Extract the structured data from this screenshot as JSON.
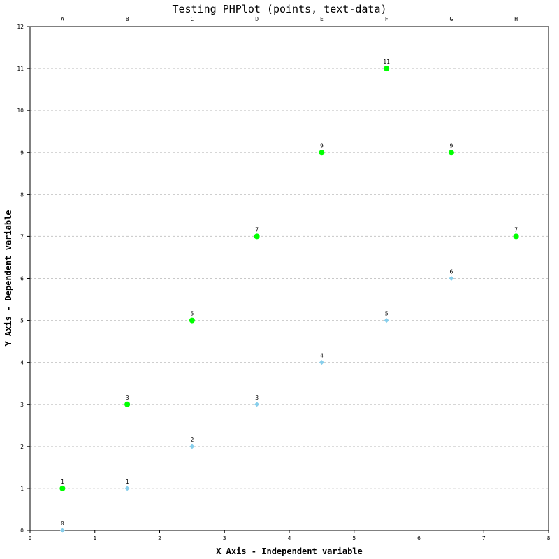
{
  "chart_data": {
    "type": "scatter",
    "title": "Testing PHPlot (points, text-data)",
    "xlabel": "X Axis - Independent variable",
    "ylabel": "Y Axis - Dependent variable",
    "xlim": [
      0,
      8
    ],
    "ylim": [
      0,
      12
    ],
    "x_ticks": [
      "0",
      "1",
      "2",
      "3",
      "4",
      "5",
      "6",
      "7",
      "8"
    ],
    "y_ticks": [
      "0",
      "1",
      "2",
      "3",
      "4",
      "5",
      "6",
      "7",
      "8",
      "9",
      "10",
      "11",
      "12"
    ],
    "categories": [
      "A",
      "B",
      "C",
      "D",
      "E",
      "F",
      "G",
      "H"
    ],
    "x": [
      0.5,
      1.5,
      2.5,
      3.5,
      4.5,
      5.5,
      6.5,
      7.5
    ],
    "grid": "horizontal dashed",
    "legend": "none",
    "series": [
      {
        "values": [
          1,
          3,
          5,
          7,
          9,
          11,
          9,
          7
        ],
        "color": "#00ff00",
        "marker": "circle"
      },
      {
        "values": [
          0,
          1,
          2,
          3,
          4,
          5,
          6,
          null
        ],
        "color": "#87ceeb",
        "marker": "diamond"
      }
    ]
  }
}
